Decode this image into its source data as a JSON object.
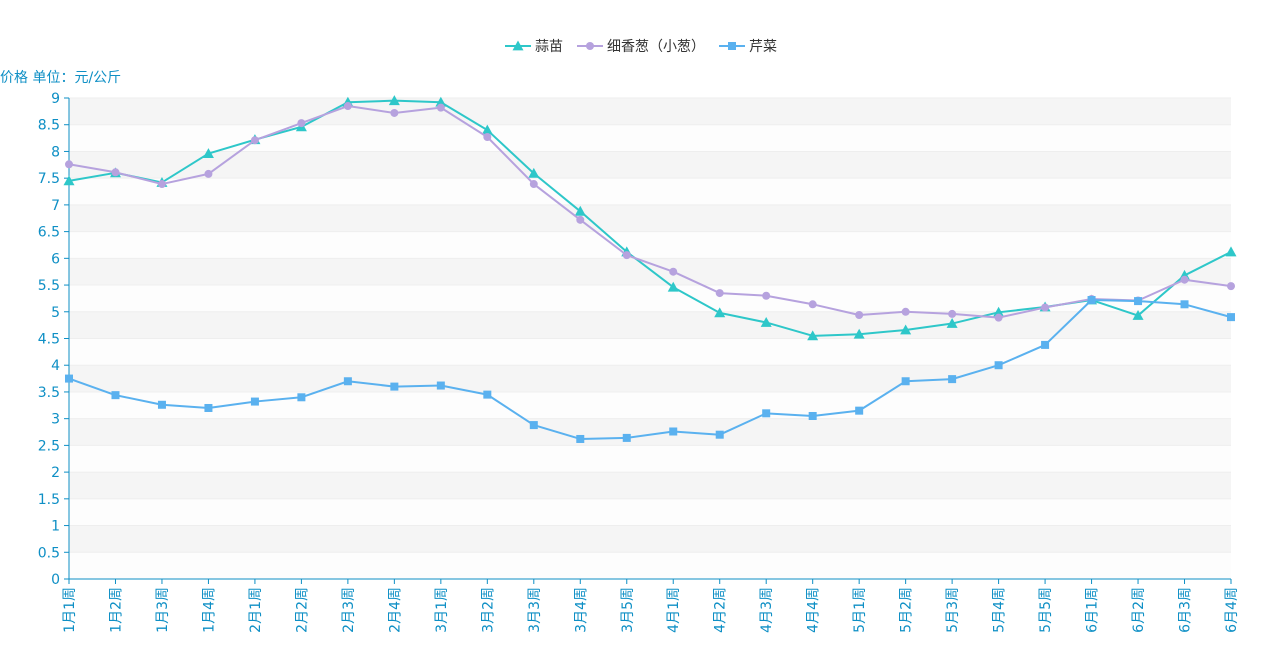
{
  "chart_data": {
    "type": "line",
    "ylabel": "价格 单位：元/公斤",
    "ylim": [
      0,
      9
    ],
    "yticks": [
      0,
      0.5,
      1,
      1.5,
      2,
      2.5,
      3,
      3.5,
      4,
      4.5,
      5,
      5.5,
      6,
      6.5,
      7,
      7.5,
      8,
      8.5,
      9
    ],
    "grid": "horizontal alternating bands",
    "legend_position": "top-center",
    "categories": [
      "1月1周",
      "1月2周",
      "1月3周",
      "1月4周",
      "2月1周",
      "2月2周",
      "2月3周",
      "2月4周",
      "3月1周",
      "3月2周",
      "3月3周",
      "3月4周",
      "3月5周",
      "4月1周",
      "4月2周",
      "4月3周",
      "4月4周",
      "5月1周",
      "5月2周",
      "5月3周",
      "5月4周",
      "5月5周",
      "6月1周",
      "6月2周",
      "6月3周",
      "6月4周"
    ],
    "series": [
      {
        "name": "蒜苗",
        "color": "#2ec7c9",
        "marker": "triangle",
        "values": [
          7.45,
          7.6,
          7.42,
          7.96,
          8.22,
          8.46,
          8.92,
          8.95,
          8.92,
          8.4,
          7.59,
          6.88,
          6.12,
          5.46,
          4.98,
          4.8,
          4.55,
          4.58,
          4.66,
          4.78,
          4.99,
          5.09,
          5.22,
          4.93,
          5.68,
          6.12
        ]
      },
      {
        "name": "细香葱（小葱）",
        "color": "#b6a2de",
        "marker": "circle",
        "values": [
          7.76,
          7.61,
          7.39,
          7.58,
          8.21,
          8.53,
          8.85,
          8.72,
          8.82,
          8.27,
          7.39,
          6.72,
          6.06,
          5.75,
          5.35,
          5.3,
          5.14,
          4.94,
          5.0,
          4.96,
          4.89,
          5.08,
          5.24,
          5.21,
          5.6,
          5.48
        ]
      },
      {
        "name": "芹菜",
        "color": "#5ab1ef",
        "marker": "square",
        "values": [
          3.75,
          3.44,
          3.26,
          3.2,
          3.32,
          3.4,
          3.7,
          3.6,
          3.62,
          3.45,
          2.88,
          2.62,
          2.64,
          2.76,
          2.7,
          3.1,
          3.05,
          3.15,
          3.7,
          3.74,
          4.0,
          4.38,
          5.22,
          5.2,
          5.14,
          4.9
        ]
      }
    ]
  }
}
